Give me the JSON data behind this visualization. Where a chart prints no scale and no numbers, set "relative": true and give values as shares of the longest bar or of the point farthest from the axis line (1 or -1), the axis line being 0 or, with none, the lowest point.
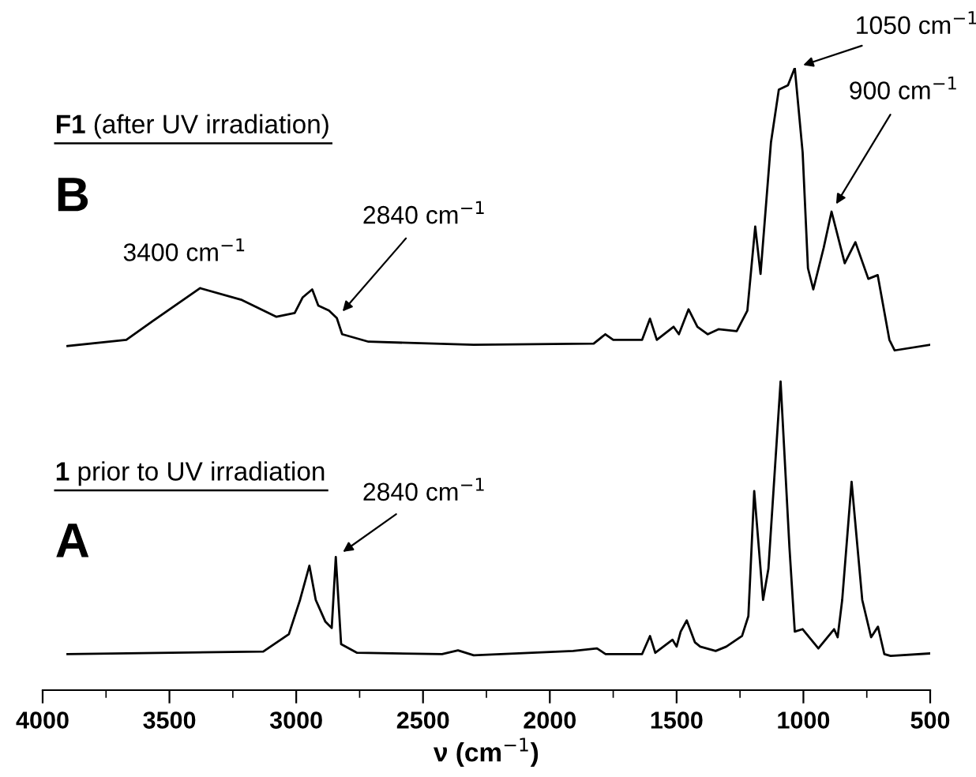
{
  "chart_data": {
    "type": "line",
    "relative": true,
    "xlabel": "ν (cm$^{−1}$)",
    "xlim": [
      4000,
      500
    ],
    "xticks": [
      4000,
      3500,
      3000,
      2500,
      2000,
      1500,
      1000,
      500
    ],
    "grid": false,
    "legend": false,
    "marker": "none",
    "line_style": "solid",
    "series": [
      {
        "color": "#000000",
        "x": [
          3902,
          3130,
          3029,
          2985,
          2948,
          2923,
          2885,
          2860,
          2844,
          2823,
          2760,
          2425,
          2362,
          2300,
          1908,
          1814,
          1780,
          1636,
          1605,
          1584,
          1516,
          1500,
          1484,
          1460,
          1428,
          1407,
          1346,
          1304,
          1242,
          1217,
          1194,
          1159,
          1138,
          1090,
          1055,
          1034,
          1003,
          941,
          879,
          865,
          847,
          810,
          768,
          733,
          706,
          681,
          656,
          500
        ],
        "values": [
          0.058,
          0.062,
          0.09,
          0.145,
          0.2,
          0.145,
          0.11,
          0.1,
          0.214,
          0.074,
          0.06,
          0.058,
          0.064,
          0.056,
          0.063,
          0.067,
          0.058,
          0.058,
          0.087,
          0.06,
          0.081,
          0.07,
          0.094,
          0.112,
          0.077,
          0.07,
          0.063,
          0.07,
          0.087,
          0.119,
          0.32,
          0.145,
          0.195,
          0.496,
          0.229,
          0.094,
          0.098,
          0.067,
          0.098,
          0.085,
          0.145,
          0.335,
          0.145,
          0.085,
          0.102,
          0.058,
          0.055,
          0.059
        ]
      },
      {
        "color": "#000000",
        "x": [
          3902,
          3670,
          3566,
          3379,
          3214,
          3078,
          3006,
          2975,
          2937,
          2913,
          2871,
          2840,
          2819,
          2715,
          2300,
          1827,
          1781,
          1750,
          1636,
          1605,
          1578,
          1512,
          1491,
          1453,
          1418,
          1377,
          1335,
          1263,
          1221,
          1190,
          1169,
          1128,
          1097,
          1061,
          1034,
          1003,
          982,
          961,
          920,
          889,
          837,
          795,
          744,
          707,
          661,
          640,
          500
        ],
        "values": [
          0.553,
          0.563,
          0.593,
          0.646,
          0.627,
          0.6,
          0.606,
          0.631,
          0.644,
          0.618,
          0.61,
          0.598,
          0.572,
          0.56,
          0.555,
          0.557,
          0.572,
          0.563,
          0.563,
          0.597,
          0.563,
          0.584,
          0.572,
          0.612,
          0.584,
          0.572,
          0.58,
          0.577,
          0.61,
          0.745,
          0.669,
          0.88,
          0.965,
          0.972,
          1.0,
          0.864,
          0.678,
          0.644,
          0.711,
          0.769,
          0.686,
          0.72,
          0.661,
          0.667,
          0.563,
          0.546,
          0.555
        ]
      }
    ],
    "annotations": [
      "F1 (after UV irradiation)",
      "B",
      "3400 cm$^{−1}$",
      {
        "text": "2840 cm$^{−1}$",
        "x": 2840,
        "y": 0.598
      },
      {
        "text": "1050 cm$^{−1}$",
        "x": 1034,
        "y": 1.0
      },
      {
        "text": "900 cm$^{−1}$",
        "x": 889,
        "y": 0.769
      },
      "1 prior to UV irradiation",
      "A",
      {
        "text": "2840 cm$^{−1}$",
        "x": 2844,
        "y": 0.214
      }
    ]
  }
}
